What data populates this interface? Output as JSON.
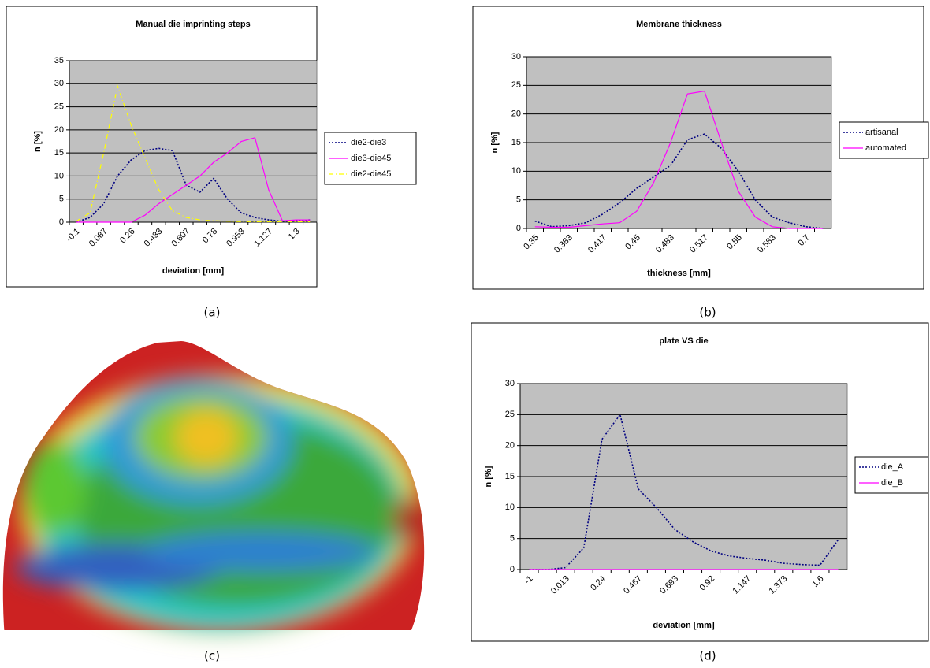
{
  "chart_data": [
    {
      "type": "line",
      "title": "Manual die imprinting steps",
      "x_label": "deviation [mm]",
      "y_label": "n [%]",
      "categories": [
        "-0.1",
        null,
        "0.087",
        null,
        "0.26",
        null,
        "0.433",
        null,
        "0.607",
        null,
        "0.78",
        null,
        "0.953",
        null,
        "1.127",
        null,
        "1.3",
        null
      ],
      "series": [
        {
          "name": "die2-die3",
          "color": "#000080",
          "style": "dotted",
          "values": [
            0,
            1,
            4,
            10,
            13.5,
            15.5,
            16,
            15.5,
            8,
            6.5,
            9.5,
            5,
            2,
            1,
            0.5,
            0.2,
            0.3,
            0.5
          ]
        },
        {
          "name": "die3-die45",
          "color": "#ff00ff",
          "style": "solid",
          "values": [
            0,
            0,
            0,
            0,
            0,
            1.5,
            4,
            6,
            8,
            10,
            13,
            15,
            17.5,
            18.3,
            7,
            0.3,
            0.5,
            0.5
          ]
        },
        {
          "name": "die2-die45",
          "color": "#ffff00",
          "style": "dashdot",
          "values": [
            0.2,
            2,
            15,
            29.5,
            21,
            14,
            7,
            2.5,
            1,
            0.5,
            0.3,
            0.2,
            0.1,
            0.1,
            0.1,
            0.1,
            0.1,
            0.1
          ]
        }
      ],
      "ylim": [
        0,
        35
      ],
      "yticks": [
        0,
        5,
        10,
        15,
        20,
        25,
        30,
        35
      ],
      "grid": true,
      "plot_color": "#c0c0c0"
    },
    {
      "type": "line",
      "title": "Membrane thickness",
      "x_label": "thickness [mm]",
      "y_label": "n [%]",
      "categories": [
        "0.35",
        null,
        "0.383",
        null,
        "0.417",
        null,
        "0.45",
        null,
        "0.483",
        null,
        "0.517",
        null,
        "0.55",
        null,
        "0.583",
        null,
        "0.7",
        null
      ],
      "series": [
        {
          "name": "artisanal",
          "color": "#000080",
          "style": "dotted",
          "values": [
            1.3,
            0.3,
            0.5,
            1,
            2.5,
            4.5,
            7,
            9,
            11,
            15.5,
            16.5,
            14,
            10,
            5,
            2,
            1,
            0.3,
            0
          ]
        },
        {
          "name": "automated",
          "color": "#ff00ff",
          "style": "solid",
          "values": [
            0.3,
            0.2,
            0.2,
            0.5,
            0.8,
            1,
            3,
            8,
            15,
            23.5,
            24,
            15,
            6.5,
            2,
            0.3,
            0,
            0,
            0
          ]
        }
      ],
      "ylim": [
        0,
        30
      ],
      "yticks": [
        0,
        5,
        10,
        15,
        20,
        25,
        30
      ],
      "grid": true,
      "plot_color": "#c0c0c0"
    },
    {
      "type": "line",
      "title": "plate VS die",
      "x_label": "deviation [mm]",
      "y_label": "n [%]",
      "categories": [
        "-1",
        null,
        "0.013",
        null,
        "0.24",
        null,
        "0.467",
        null,
        "0.693",
        null,
        "0.92",
        null,
        "1.147",
        null,
        "1.373",
        null,
        "1.6",
        null
      ],
      "series": [
        {
          "name": "die_A",
          "color": "#000080",
          "style": "dotted",
          "values": [
            0,
            0,
            0.3,
            3.5,
            21,
            25,
            13,
            10,
            6.5,
            4.5,
            3,
            2.2,
            1.8,
            1.5,
            1,
            0.8,
            0.7,
            4.8
          ]
        },
        {
          "name": "die_B",
          "color": "#ff00ff",
          "style": "solid",
          "values": [
            0,
            0,
            0,
            0,
            0,
            0,
            0,
            0,
            0,
            0,
            0,
            0,
            0,
            0,
            0,
            0,
            0,
            0
          ]
        }
      ],
      "ylim": [
        0,
        30
      ],
      "yticks": [
        0,
        5,
        10,
        15,
        20,
        25,
        30
      ],
      "grid": true,
      "plot_color": "#c0c0c0"
    }
  ],
  "captions": {
    "a": "(a)",
    "b": "(b)",
    "c": "(c)",
    "d": "(d)"
  }
}
